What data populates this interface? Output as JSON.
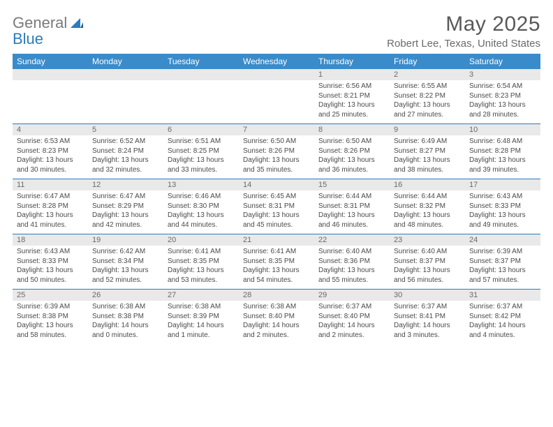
{
  "brand": {
    "part1": "General",
    "part2": "Blue"
  },
  "title": "May 2025",
  "location": "Robert Lee, Texas, United States",
  "colors": {
    "header_bg": "#3a8bc9",
    "header_text": "#ffffff",
    "daynum_bg": "#e9e9e9",
    "week_sep": "#2b7bbf",
    "logo_gray": "#7a7a7a",
    "logo_blue": "#2b7bbf"
  },
  "dayNames": [
    "Sunday",
    "Monday",
    "Tuesday",
    "Wednesday",
    "Thursday",
    "Friday",
    "Saturday"
  ],
  "weeks": [
    [
      {
        "n": "",
        "sr": "",
        "ss": "",
        "dl": ""
      },
      {
        "n": "",
        "sr": "",
        "ss": "",
        "dl": ""
      },
      {
        "n": "",
        "sr": "",
        "ss": "",
        "dl": ""
      },
      {
        "n": "",
        "sr": "",
        "ss": "",
        "dl": ""
      },
      {
        "n": "1",
        "sr": "Sunrise: 6:56 AM",
        "ss": "Sunset: 8:21 PM",
        "dl": "Daylight: 13 hours and 25 minutes."
      },
      {
        "n": "2",
        "sr": "Sunrise: 6:55 AM",
        "ss": "Sunset: 8:22 PM",
        "dl": "Daylight: 13 hours and 27 minutes."
      },
      {
        "n": "3",
        "sr": "Sunrise: 6:54 AM",
        "ss": "Sunset: 8:23 PM",
        "dl": "Daylight: 13 hours and 28 minutes."
      }
    ],
    [
      {
        "n": "4",
        "sr": "Sunrise: 6:53 AM",
        "ss": "Sunset: 8:23 PM",
        "dl": "Daylight: 13 hours and 30 minutes."
      },
      {
        "n": "5",
        "sr": "Sunrise: 6:52 AM",
        "ss": "Sunset: 8:24 PM",
        "dl": "Daylight: 13 hours and 32 minutes."
      },
      {
        "n": "6",
        "sr": "Sunrise: 6:51 AM",
        "ss": "Sunset: 8:25 PM",
        "dl": "Daylight: 13 hours and 33 minutes."
      },
      {
        "n": "7",
        "sr": "Sunrise: 6:50 AM",
        "ss": "Sunset: 8:26 PM",
        "dl": "Daylight: 13 hours and 35 minutes."
      },
      {
        "n": "8",
        "sr": "Sunrise: 6:50 AM",
        "ss": "Sunset: 8:26 PM",
        "dl": "Daylight: 13 hours and 36 minutes."
      },
      {
        "n": "9",
        "sr": "Sunrise: 6:49 AM",
        "ss": "Sunset: 8:27 PM",
        "dl": "Daylight: 13 hours and 38 minutes."
      },
      {
        "n": "10",
        "sr": "Sunrise: 6:48 AM",
        "ss": "Sunset: 8:28 PM",
        "dl": "Daylight: 13 hours and 39 minutes."
      }
    ],
    [
      {
        "n": "11",
        "sr": "Sunrise: 6:47 AM",
        "ss": "Sunset: 8:28 PM",
        "dl": "Daylight: 13 hours and 41 minutes."
      },
      {
        "n": "12",
        "sr": "Sunrise: 6:47 AM",
        "ss": "Sunset: 8:29 PM",
        "dl": "Daylight: 13 hours and 42 minutes."
      },
      {
        "n": "13",
        "sr": "Sunrise: 6:46 AM",
        "ss": "Sunset: 8:30 PM",
        "dl": "Daylight: 13 hours and 44 minutes."
      },
      {
        "n": "14",
        "sr": "Sunrise: 6:45 AM",
        "ss": "Sunset: 8:31 PM",
        "dl": "Daylight: 13 hours and 45 minutes."
      },
      {
        "n": "15",
        "sr": "Sunrise: 6:44 AM",
        "ss": "Sunset: 8:31 PM",
        "dl": "Daylight: 13 hours and 46 minutes."
      },
      {
        "n": "16",
        "sr": "Sunrise: 6:44 AM",
        "ss": "Sunset: 8:32 PM",
        "dl": "Daylight: 13 hours and 48 minutes."
      },
      {
        "n": "17",
        "sr": "Sunrise: 6:43 AM",
        "ss": "Sunset: 8:33 PM",
        "dl": "Daylight: 13 hours and 49 minutes."
      }
    ],
    [
      {
        "n": "18",
        "sr": "Sunrise: 6:43 AM",
        "ss": "Sunset: 8:33 PM",
        "dl": "Daylight: 13 hours and 50 minutes."
      },
      {
        "n": "19",
        "sr": "Sunrise: 6:42 AM",
        "ss": "Sunset: 8:34 PM",
        "dl": "Daylight: 13 hours and 52 minutes."
      },
      {
        "n": "20",
        "sr": "Sunrise: 6:41 AM",
        "ss": "Sunset: 8:35 PM",
        "dl": "Daylight: 13 hours and 53 minutes."
      },
      {
        "n": "21",
        "sr": "Sunrise: 6:41 AM",
        "ss": "Sunset: 8:35 PM",
        "dl": "Daylight: 13 hours and 54 minutes."
      },
      {
        "n": "22",
        "sr": "Sunrise: 6:40 AM",
        "ss": "Sunset: 8:36 PM",
        "dl": "Daylight: 13 hours and 55 minutes."
      },
      {
        "n": "23",
        "sr": "Sunrise: 6:40 AM",
        "ss": "Sunset: 8:37 PM",
        "dl": "Daylight: 13 hours and 56 minutes."
      },
      {
        "n": "24",
        "sr": "Sunrise: 6:39 AM",
        "ss": "Sunset: 8:37 PM",
        "dl": "Daylight: 13 hours and 57 minutes."
      }
    ],
    [
      {
        "n": "25",
        "sr": "Sunrise: 6:39 AM",
        "ss": "Sunset: 8:38 PM",
        "dl": "Daylight: 13 hours and 58 minutes."
      },
      {
        "n": "26",
        "sr": "Sunrise: 6:38 AM",
        "ss": "Sunset: 8:38 PM",
        "dl": "Daylight: 14 hours and 0 minutes."
      },
      {
        "n": "27",
        "sr": "Sunrise: 6:38 AM",
        "ss": "Sunset: 8:39 PM",
        "dl": "Daylight: 14 hours and 1 minute."
      },
      {
        "n": "28",
        "sr": "Sunrise: 6:38 AM",
        "ss": "Sunset: 8:40 PM",
        "dl": "Daylight: 14 hours and 2 minutes."
      },
      {
        "n": "29",
        "sr": "Sunrise: 6:37 AM",
        "ss": "Sunset: 8:40 PM",
        "dl": "Daylight: 14 hours and 2 minutes."
      },
      {
        "n": "30",
        "sr": "Sunrise: 6:37 AM",
        "ss": "Sunset: 8:41 PM",
        "dl": "Daylight: 14 hours and 3 minutes."
      },
      {
        "n": "31",
        "sr": "Sunrise: 6:37 AM",
        "ss": "Sunset: 8:42 PM",
        "dl": "Daylight: 14 hours and 4 minutes."
      }
    ]
  ]
}
